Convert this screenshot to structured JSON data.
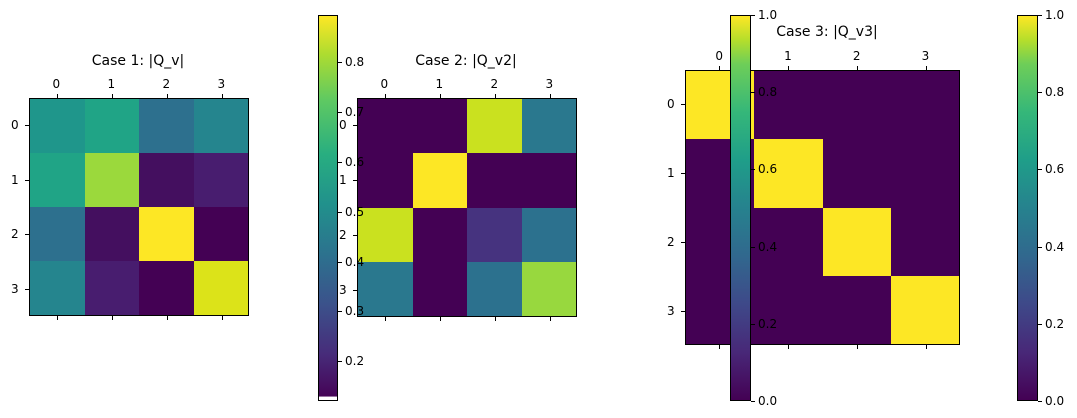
{
  "chart_data": [
    {
      "type": "heatmap",
      "title": "Case 1: |Q_v|",
      "x_tick_labels": [
        "0",
        "1",
        "2",
        "3"
      ],
      "y_tick_labels": [
        "0",
        "1",
        "2",
        "3"
      ],
      "colormap": "viridis",
      "values": [
        [
          0.55,
          0.6,
          0.42,
          0.5
        ],
        [
          0.6,
          0.8,
          0.16,
          0.2
        ],
        [
          0.42,
          0.16,
          0.89,
          0.13
        ],
        [
          0.5,
          0.2,
          0.13,
          0.85
        ]
      ],
      "cell_colors": [
        [
          "#1f968b",
          "#20a486",
          "#2d708e",
          "#25858e"
        ],
        [
          "#20a486",
          "#9bd93c",
          "#440f5f",
          "#481d6f"
        ],
        [
          "#2d708e",
          "#440f5f",
          "#fde725",
          "#440154"
        ],
        [
          "#25858e",
          "#481d6f",
          "#440154",
          "#dce319"
        ]
      ],
      "colorbar": {
        "range": [
          0.12,
          0.89
        ],
        "ticks": [
          "0.2",
          "0.3",
          "0.4",
          "0.5",
          "0.6",
          "0.7",
          "0.8"
        ]
      }
    },
    {
      "type": "heatmap",
      "title": "Case 2: |Q_v2|",
      "x_tick_labels": [
        "0",
        "1",
        "2",
        "3"
      ],
      "y_tick_labels": [
        "0",
        "1",
        "2",
        "3"
      ],
      "colormap": "viridis",
      "values": [
        [
          0.0,
          0.0,
          0.92,
          0.42
        ],
        [
          0.0,
          1.0,
          0.0,
          0.0
        ],
        [
          0.92,
          0.0,
          0.18,
          0.4
        ],
        [
          0.42,
          0.0,
          0.4,
          0.83
        ]
      ],
      "cell_colors": [
        [
          "#440154",
          "#440154",
          "#cae11f",
          "#2a788e"
        ],
        [
          "#440154",
          "#fde725",
          "#440154",
          "#440154"
        ],
        [
          "#cae11f",
          "#440154",
          "#46337f",
          "#2c718e"
        ],
        [
          "#2a788e",
          "#440154",
          "#2c718e",
          "#98d83e"
        ]
      ],
      "colorbar": {
        "range": [
          0.0,
          1.0
        ],
        "ticks": [
          "0.0",
          "0.2",
          "0.4",
          "0.6",
          "0.8",
          "1.0"
        ]
      }
    },
    {
      "type": "heatmap",
      "title": "Case 3: |Q_v3|",
      "x_tick_labels": [
        "0",
        "1",
        "2",
        "3"
      ],
      "y_tick_labels": [
        "0",
        "1",
        "2",
        "3"
      ],
      "colormap": "viridis",
      "values": [
        [
          1.0,
          0.0,
          0.0,
          0.0
        ],
        [
          0.0,
          1.0,
          0.0,
          0.0
        ],
        [
          0.0,
          0.0,
          1.0,
          0.0
        ],
        [
          0.0,
          0.0,
          0.0,
          1.0
        ]
      ],
      "cell_colors": [
        [
          "#fde725",
          "#440154",
          "#440154",
          "#440154"
        ],
        [
          "#440154",
          "#fde725",
          "#440154",
          "#440154"
        ],
        [
          "#440154",
          "#440154",
          "#fde725",
          "#440154"
        ],
        [
          "#440154",
          "#440154",
          "#440154",
          "#fde725"
        ]
      ],
      "colorbar": {
        "range": [
          0.0,
          1.0
        ],
        "ticks": [
          "0.0",
          "0.2",
          "0.4",
          "0.6",
          "0.8",
          "1.0"
        ]
      }
    }
  ]
}
